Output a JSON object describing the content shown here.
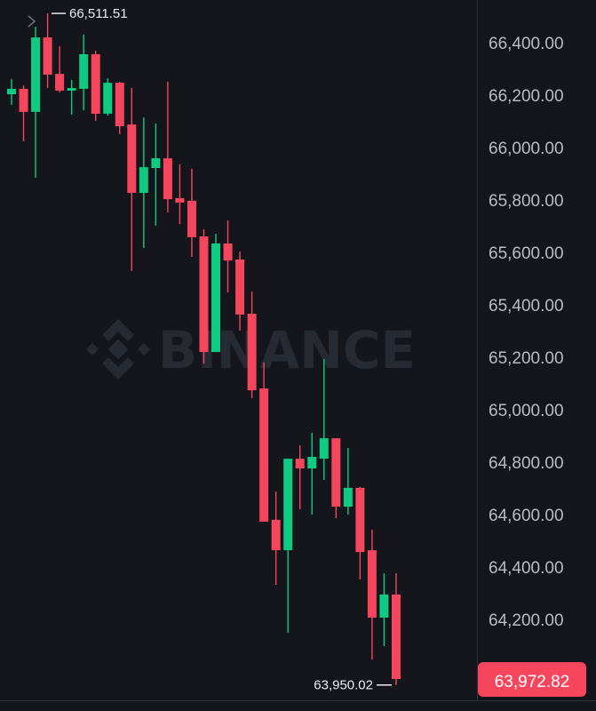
{
  "chart_data": {
    "type": "candlestick",
    "title": "",
    "xlabel": "",
    "ylabel": "",
    "ylim": [
      63900,
      66560
    ],
    "y_ticks": [
      "66,400.00",
      "66,200.00",
      "66,000.00",
      "65,800.00",
      "65,600.00",
      "65,400.00",
      "65,200.00",
      "65,000.00",
      "64,800.00",
      "64,600.00",
      "64,400.00",
      "64,200.00"
    ],
    "y_tick_values": [
      66400,
      66200,
      66000,
      65800,
      65600,
      65400,
      65200,
      65000,
      64800,
      64600,
      64400,
      64200
    ],
    "grid": false,
    "candles": [
      {
        "o": 66203,
        "h": 66261,
        "l": 66163,
        "c": 66224
      },
      {
        "o": 66224,
        "h": 66237,
        "l": 66024,
        "c": 66136
      },
      {
        "o": 66136,
        "h": 66461,
        "l": 65885,
        "c": 66420
      },
      {
        "o": 66420,
        "h": 66511.51,
        "l": 66227,
        "c": 66278
      },
      {
        "o": 66281,
        "h": 66386,
        "l": 66210,
        "c": 66217
      },
      {
        "o": 66217,
        "h": 66258,
        "l": 66125,
        "c": 66227
      },
      {
        "o": 66224,
        "h": 66431,
        "l": 66142,
        "c": 66356
      },
      {
        "o": 66356,
        "h": 66369,
        "l": 66102,
        "c": 66129
      },
      {
        "o": 66129,
        "h": 66264,
        "l": 66122,
        "c": 66247
      },
      {
        "o": 66247,
        "h": 66251,
        "l": 66051,
        "c": 66081
      },
      {
        "o": 66088,
        "h": 66227,
        "l": 65529,
        "c": 65827
      },
      {
        "o": 65827,
        "h": 66115,
        "l": 65617,
        "c": 65925
      },
      {
        "o": 65922,
        "h": 66092,
        "l": 65702,
        "c": 65959
      },
      {
        "o": 65959,
        "h": 66251,
        "l": 65753,
        "c": 65803
      },
      {
        "o": 65807,
        "h": 65936,
        "l": 65708,
        "c": 65790
      },
      {
        "o": 65797,
        "h": 65919,
        "l": 65583,
        "c": 65658
      },
      {
        "o": 65661,
        "h": 65688,
        "l": 65176,
        "c": 65220
      },
      {
        "o": 65220,
        "h": 65671,
        "l": 65220,
        "c": 65634
      },
      {
        "o": 65634,
        "h": 65722,
        "l": 65447,
        "c": 65569
      },
      {
        "o": 65573,
        "h": 65603,
        "l": 65302,
        "c": 65363
      },
      {
        "o": 65366,
        "h": 65451,
        "l": 65044,
        "c": 65074
      },
      {
        "o": 65081,
        "h": 65180,
        "l": 64573,
        "c": 64573
      },
      {
        "o": 64580,
        "h": 64688,
        "l": 64332,
        "c": 64464
      },
      {
        "o": 64464,
        "h": 64813,
        "l": 64149,
        "c": 64813
      },
      {
        "o": 64813,
        "h": 64864,
        "l": 64620,
        "c": 64776
      },
      {
        "o": 64776,
        "h": 64912,
        "l": 64600,
        "c": 64820
      },
      {
        "o": 64813,
        "h": 65193,
        "l": 64732,
        "c": 64891
      },
      {
        "o": 64891,
        "h": 64891,
        "l": 64586,
        "c": 64630
      },
      {
        "o": 64630,
        "h": 64854,
        "l": 64600,
        "c": 64702
      },
      {
        "o": 64702,
        "h": 64705,
        "l": 64352,
        "c": 64457
      },
      {
        "o": 64464,
        "h": 64542,
        "l": 64047,
        "c": 64207
      },
      {
        "o": 64207,
        "h": 64376,
        "l": 64098,
        "c": 64295
      },
      {
        "o": 64295,
        "h": 64376,
        "l": 63950.02,
        "c": 63972.82
      }
    ],
    "high_marker": {
      "label": "66,511.51",
      "value": 66511.51
    },
    "low_marker": {
      "label": "63,950.02",
      "value": 63950.02
    },
    "last_price": {
      "label": "63,972.82",
      "value": 63972.82
    },
    "colors": {
      "up": "#0ecb81",
      "down": "#f6465d",
      "background": "#14161c",
      "axis_text": "#b7bdc6"
    },
    "watermark": "BINANCE"
  }
}
